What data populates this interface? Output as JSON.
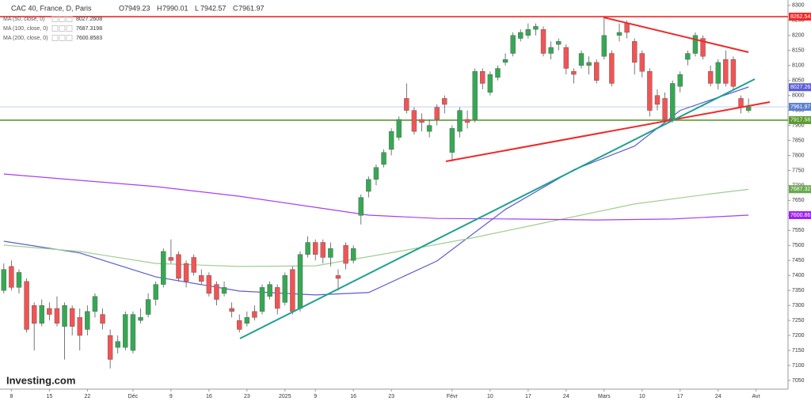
{
  "chart_data": {
    "type": "candlestick",
    "title": "CAC 40, France, D, Paris",
    "ohlc_header": [
      {
        "label": "O",
        "value": 7949.23
      },
      {
        "label": "H",
        "value": 7990.01
      },
      {
        "label": "L",
        "value": 7942.57
      },
      {
        "label": "C",
        "value": 7961.97
      }
    ],
    "open": [
      7350,
      7430,
      7360,
      7380,
      7300,
      7240,
      7290,
      7290,
      7230,
      7290,
      7260,
      7220,
      7280,
      7270,
      7200,
      7160,
      7160,
      7150,
      7250,
      7270,
      7320,
      7370,
      7460,
      7470,
      7440,
      7460,
      7400,
      7400,
      7370,
      7340,
      7290,
      7250,
      7240,
      7280,
      7280,
      7330,
      7360,
      7310,
      7420,
      7290,
      7470,
      7510,
      7510,
      7460,
      7400,
      7500,
      7450,
      7600,
      7680,
      7720,
      7770,
      7820,
      7860,
      7990,
      7950,
      7920,
      7880,
      7960,
      7990,
      7810,
      7880,
      7920,
      7920,
      8080,
      8010,
      8060,
      8110,
      8140,
      8190,
      8200,
      8220,
      8220,
      8140,
      8170,
      8160,
      8080,
      8100,
      8100,
      8110,
      8130,
      8140,
      8200,
      8240,
      8180,
      8140,
      8080,
      8000,
      7990,
      7920,
      8030,
      8120,
      8140,
      8190,
      8080,
      8040,
      8120,
      8120,
      7990,
      7949.23
    ],
    "high": [
      7440,
      7450,
      7420,
      7390,
      7310,
      7320,
      7310,
      7330,
      7310,
      7300,
      7290,
      7300,
      7340,
      7290,
      7220,
      7200,
      7280,
      7280,
      7290,
      7340,
      7380,
      7490,
      7520,
      7480,
      7450,
      7470,
      7420,
      7410,
      7380,
      7380,
      7310,
      7270,
      7280,
      7300,
      7370,
      7380,
      7370,
      7410,
      7430,
      7480,
      7530,
      7520,
      7520,
      7510,
      7420,
      7510,
      7500,
      7670,
      7730,
      7770,
      7820,
      7890,
      7930,
      8040,
      7960,
      7940,
      7920,
      7970,
      8000,
      7900,
      7960,
      7950,
      8090,
      8090,
      8080,
      8100,
      8140,
      8210,
      8220,
      8240,
      8240,
      8230,
      8180,
      8190,
      8170,
      8090,
      8150,
      8130,
      8120,
      8260,
      8150,
      8240,
      8250,
      8190,
      8150,
      8090,
      8020,
      8010,
      8050,
      8080,
      8150,
      8210,
      8200,
      8100,
      8120,
      8150,
      8130,
      8000,
      7990.01
    ],
    "low": [
      7340,
      7350,
      7340,
      7210,
      7150,
      7230,
      7250,
      7230,
      7120,
      7200,
      7150,
      7200,
      7260,
      7220,
      7090,
      7140,
      7150,
      7140,
      7240,
      7260,
      7300,
      7360,
      7440,
      7380,
      7360,
      7400,
      7370,
      7330,
      7300,
      7330,
      7260,
      7210,
      7230,
      7250,
      7270,
      7320,
      7270,
      7300,
      7270,
      7280,
      7460,
      7450,
      7440,
      7430,
      7350,
      7420,
      7440,
      7570,
      7660,
      7700,
      7760,
      7800,
      7850,
      7940,
      7870,
      7880,
      7860,
      7900,
      7940,
      7780,
      7860,
      7890,
      7910,
      8020,
      8000,
      8050,
      8100,
      8130,
      8180,
      8190,
      8200,
      8130,
      8120,
      8150,
      8070,
      8040,
      8090,
      8070,
      8040,
      8120,
      8030,
      8180,
      8190,
      8070,
      8060,
      7930,
      7950,
      7910,
      7910,
      8010,
      8100,
      8130,
      8120,
      8030,
      8020,
      8030,
      8020,
      7940,
      7942.57
    ],
    "close": [
      7420,
      7360,
      7410,
      7220,
      7240,
      7300,
      7270,
      7240,
      7300,
      7230,
      7200,
      7280,
      7330,
      7240,
      7120,
      7180,
      7270,
      7270,
      7260,
      7320,
      7370,
      7480,
      7450,
      7390,
      7380,
      7410,
      7380,
      7340,
      7320,
      7360,
      7280,
      7220,
      7260,
      7260,
      7360,
      7370,
      7290,
      7400,
      7280,
      7470,
      7510,
      7470,
      7460,
      7490,
      7390,
      7440,
      7490,
      7660,
      7720,
      7760,
      7810,
      7880,
      7920,
      7950,
      7880,
      7910,
      7900,
      7920,
      7970,
      7890,
      7950,
      7910,
      8080,
      8040,
      8070,
      8090,
      8120,
      8200,
      8210,
      8220,
      8230,
      8140,
      8160,
      8180,
      8090,
      8070,
      8140,
      8110,
      8050,
      8200,
      8040,
      8210,
      8210,
      8110,
      8080,
      7950,
      7970,
      7920,
      8040,
      8070,
      8140,
      8200,
      8130,
      8040,
      8110,
      8040,
      8030,
      7960,
      7961.97
    ],
    "up_color": "#35a853",
    "down_color": "#f05454",
    "series": [
      {
        "name": "MA (50, close, 0)",
        "color": "#5b5bd6",
        "last_value": 8027.2608,
        "x": [
          0,
          10,
          20,
          31,
          41,
          48,
          57,
          66,
          75,
          83,
          89,
          98
        ],
        "values": [
          7514,
          7475,
          7395,
          7348,
          7335,
          7343,
          7448,
          7620,
          7752,
          7831,
          7950,
          8028
        ]
      },
      {
        "name": "MA (100, close, 0)",
        "color": "#9fcf90",
        "last_value": 7687.3198,
        "x": [
          0,
          10,
          20,
          31,
          41,
          52,
          62,
          72,
          83,
          93,
          98
        ],
        "values": [
          7501,
          7480,
          7440,
          7430,
          7432,
          7480,
          7527,
          7580,
          7638,
          7672,
          7687
        ]
      },
      {
        "name": "MA (200, close, 0)",
        "color": "#a83ff0",
        "last_value": 7600.8583,
        "x": [
          0,
          10,
          20,
          31,
          41,
          48,
          57,
          67,
          78,
          88,
          98
        ],
        "values": [
          7738,
          7717,
          7696,
          7664,
          7627,
          7601,
          7590,
          7588,
          7585,
          7588,
          7601
        ]
      }
    ],
    "price_lines": [
      {
        "value": 8262.54,
        "color": "#f02828",
        "line": true
      },
      {
        "value": 8027.26,
        "color": "#5b5bd6",
        "line": false
      },
      {
        "value": 7961.97,
        "color": "#5a7fd0",
        "line": true
      },
      {
        "value": 7917.58,
        "color": "#5a9a30",
        "line": true
      },
      {
        "value": 7687.32,
        "color": "#6aa84f",
        "line": false
      },
      {
        "value": 7600.86,
        "color": "#a020f0",
        "line": false
      }
    ],
    "xlim": [
      -0.5,
      103.2
    ],
    "xticks": [
      {
        "value": 1,
        "label": "8"
      },
      {
        "value": 6,
        "label": "15"
      },
      {
        "value": 11,
        "label": "22"
      },
      {
        "value": 17,
        "label": "Déc"
      },
      {
        "value": 22,
        "label": "9"
      },
      {
        "value": 27,
        "label": "16"
      },
      {
        "value": 32,
        "label": "23"
      },
      {
        "value": 37,
        "label": "2025"
      },
      {
        "value": 41,
        "label": "9"
      },
      {
        "value": 46,
        "label": "16"
      },
      {
        "value": 51,
        "label": "23"
      },
      {
        "value": 59,
        "label": "Févr"
      },
      {
        "value": 64,
        "label": "10"
      },
      {
        "value": 69,
        "label": "17"
      },
      {
        "value": 74,
        "label": "24"
      },
      {
        "value": 79,
        "label": "Mars"
      },
      {
        "value": 84,
        "label": "10"
      },
      {
        "value": 89,
        "label": "17"
      },
      {
        "value": 94,
        "label": "24"
      },
      {
        "value": 99,
        "label": "Avr"
      }
    ],
    "ylim": [
      7021,
      8318
    ],
    "yticks": [
      8300,
      8250,
      8200,
      8150,
      8100,
      8050,
      8000,
      7950,
      7900,
      7850,
      7800,
      7750,
      7700,
      7650,
      7600,
      7550,
      7500,
      7450,
      7400,
      7350,
      7300,
      7250,
      7200,
      7150,
      7100,
      7050
    ],
    "watermark": "Investing.com"
  }
}
